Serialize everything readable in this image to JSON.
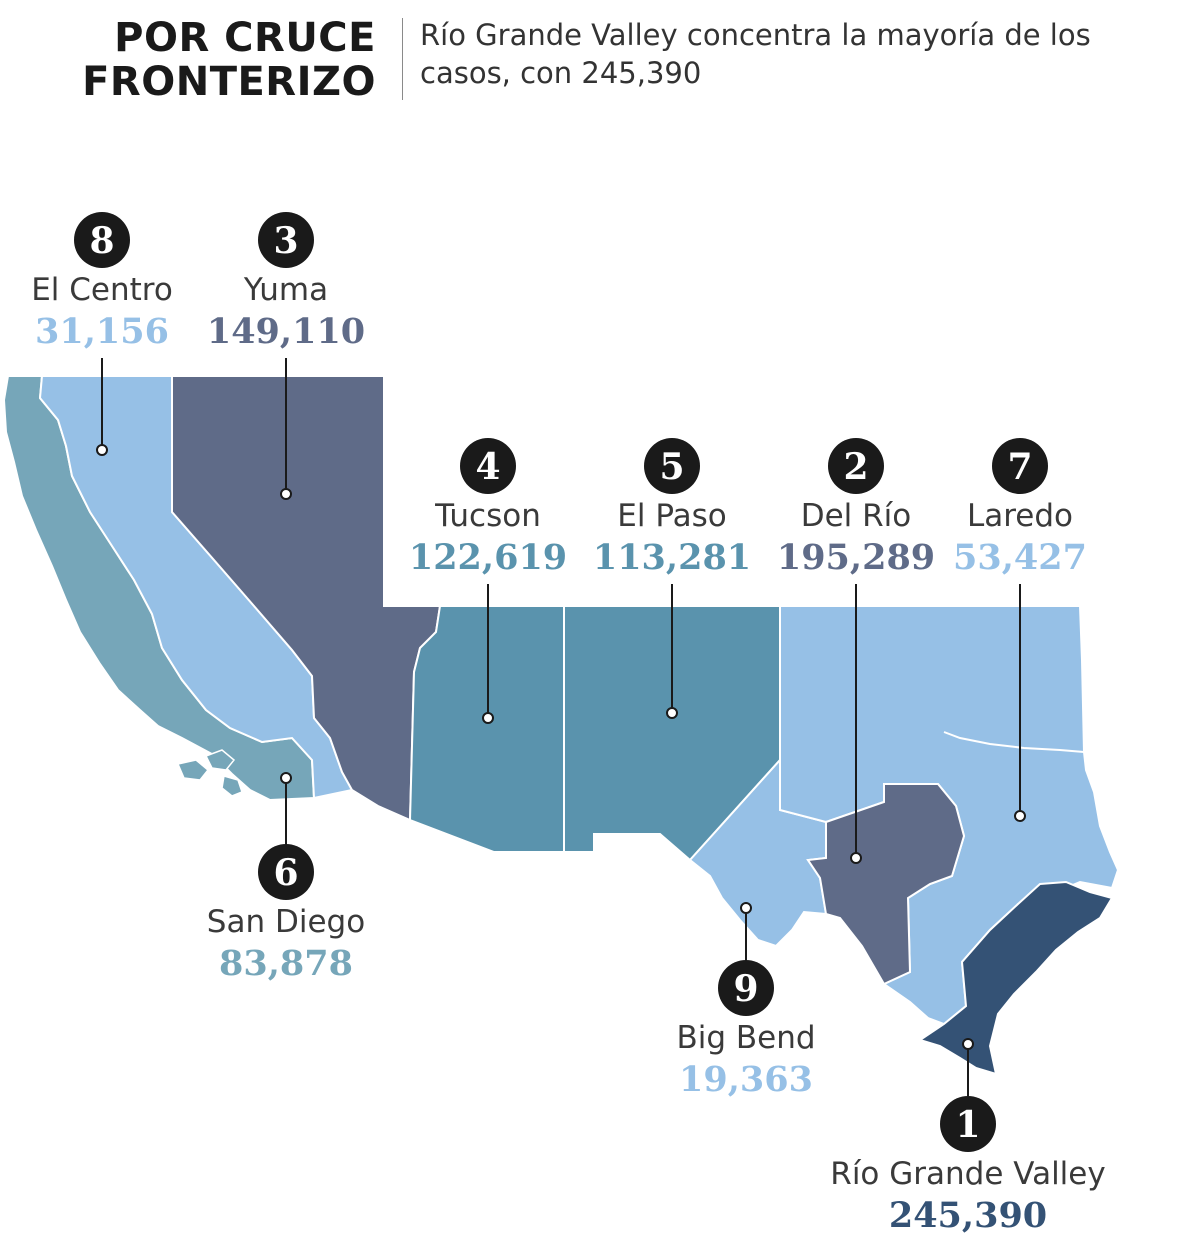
{
  "header": {
    "title_line1": "POR CRUCE",
    "title_line2": "FRONTERIZO",
    "subtitle": "Río Grande Valley concentra la mayoría de los casos, con 245,390"
  },
  "colors": {
    "pale": "#96c0e6",
    "teal_light": "#76a6b9",
    "teal": "#5a93ad",
    "slate": "#5f6b88",
    "navy": "#345275",
    "badge": "#1a1a1a",
    "pin": "#1a1a1a"
  },
  "sectors": [
    {
      "rank": "8",
      "name": "El Centro",
      "count": "31,156",
      "color": "pale"
    },
    {
      "rank": "3",
      "name": "Yuma",
      "count": "149,110",
      "color": "slate"
    },
    {
      "rank": "4",
      "name": "Tucson",
      "count": "122,619",
      "color": "teal"
    },
    {
      "rank": "5",
      "name": "El Paso",
      "count": "113,281",
      "color": "teal"
    },
    {
      "rank": "2",
      "name": "Del Río",
      "count": "195,289",
      "color": "slate"
    },
    {
      "rank": "7",
      "name": "Laredo",
      "count": "53,427",
      "color": "pale"
    },
    {
      "rank": "6",
      "name": "San Diego",
      "count": "83,878",
      "color": "teal_light"
    },
    {
      "rank": "9",
      "name": "Big Bend",
      "count": "19,363",
      "color": "pale"
    },
    {
      "rank": "1",
      "name": "Río Grande Valley",
      "count": "245,390",
      "color": "navy"
    }
  ]
}
